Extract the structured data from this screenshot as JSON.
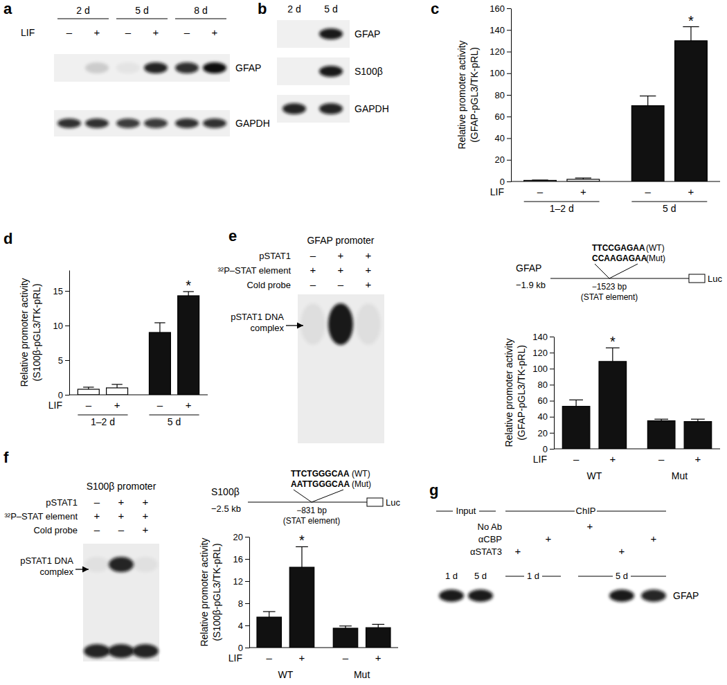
{
  "chart_data": [
    {
      "type": "bar",
      "panel": "c",
      "ylabel": [
        "Relative promoter activity",
        "(GFAP-pGL3/TK-pRL)"
      ],
      "x_label": "LIF",
      "categories": [
        "–",
        "+",
        "–",
        "+"
      ],
      "groups": [
        "1–2 d",
        "5 d"
      ],
      "values": [
        1.0,
        2.0,
        70,
        130
      ],
      "errors": [
        0.3,
        1.2,
        9,
        13
      ],
      "colors": [
        "#ffffff",
        "#ffffff",
        "#111111",
        "#111111"
      ],
      "significance": [
        null,
        null,
        null,
        "*"
      ],
      "ylim": [
        0,
        160
      ],
      "yticks": [
        0,
        20,
        40,
        60,
        80,
        100,
        120,
        140,
        160
      ]
    },
    {
      "type": "bar",
      "panel": "d",
      "ylabel": [
        "Relative promoter activity",
        "(S100β-pGL3/TK-pRL)"
      ],
      "x_label": "LIF",
      "categories": [
        "–",
        "+",
        "–",
        "+"
      ],
      "groups": [
        "1–2 d",
        "5 d"
      ],
      "values": [
        0.8,
        1.0,
        9.0,
        14.3
      ],
      "errors": [
        0.3,
        0.5,
        1.4,
        0.6
      ],
      "colors": [
        "#ffffff",
        "#ffffff",
        "#111111",
        "#111111"
      ],
      "significance": [
        null,
        null,
        null,
        "*"
      ],
      "ylim": [
        0,
        18
      ],
      "yticks": [
        0,
        5,
        10,
        15
      ]
    },
    {
      "type": "bar",
      "ylabel": [
        "Relative promoter activity",
        "(GFAP-pGL3/TK-pRL)"
      ],
      "x_label": "LIF",
      "categories": [
        "–",
        "+",
        "–",
        "+"
      ],
      "groups": [
        "WT",
        "Mut"
      ],
      "values": [
        53,
        109,
        35,
        34
      ],
      "errors": [
        8,
        17,
        2,
        3
      ],
      "colors": [
        "#111111",
        "#111111",
        "#111111",
        "#111111"
      ],
      "significance": [
        null,
        "*",
        null,
        null
      ],
      "ylim": [
        0,
        140
      ],
      "yticks": [
        0,
        20,
        40,
        60,
        80,
        100,
        120,
        140
      ]
    },
    {
      "type": "bar",
      "ylabel": [
        "Relative promoter activity",
        "(S100β-pGL3/TK-pRL)"
      ],
      "x_label": "LIF",
      "categories": [
        "–",
        "+",
        "–",
        "+"
      ],
      "groups": [
        "WT",
        "Mut"
      ],
      "values": [
        5.5,
        14.5,
        3.5,
        3.6
      ],
      "errors": [
        1.0,
        3.7,
        0.4,
        0.6
      ],
      "colors": [
        "#111111",
        "#111111",
        "#111111",
        "#111111"
      ],
      "significance": [
        null,
        "*",
        null,
        null
      ],
      "ylim": [
        0,
        20
      ],
      "yticks": [
        0,
        4,
        8,
        12,
        16,
        20
      ]
    }
  ],
  "blot_panels": [
    {
      "panel": "a",
      "headers": [
        "2 d",
        "5 d",
        "8 d"
      ],
      "row_label": "LIF",
      "row": [
        "–",
        "+",
        "–",
        "+",
        "–",
        "+"
      ],
      "blots": [
        {
          "label": "GFAP",
          "bands": [
            0,
            0.15,
            0.05,
            0.9,
            0.85,
            1.0
          ]
        },
        {
          "label": "GAPDH",
          "bands": [
            0.85,
            0.85,
            0.8,
            0.8,
            0.85,
            0.85
          ]
        }
      ]
    },
    {
      "panel": "b",
      "headers": [
        "2 d",
        "5 d"
      ],
      "blots": [
        {
          "label": "GFAP",
          "bands": [
            0,
            0.95
          ]
        },
        {
          "label": "S100β",
          "bands": [
            0,
            0.95
          ]
        },
        {
          "label": "GAPDH",
          "bands": [
            0.9,
            0.9
          ]
        }
      ]
    },
    {
      "panel": "g",
      "headers": [
        "Input",
        "ChIP"
      ],
      "rows": [
        {
          "label": "No Ab",
          "marks": [
            null,
            null,
            null,
            null,
            "+",
            null,
            null
          ]
        },
        {
          "label": "αCBP",
          "marks": [
            null,
            null,
            null,
            "+",
            null,
            null,
            "+"
          ]
        },
        {
          "label": "αSTAT3",
          "marks": [
            null,
            null,
            "+",
            null,
            null,
            "+",
            null
          ]
        }
      ],
      "lane_labels": [
        "1 d",
        "5 d",
        "1 d",
        "5 d"
      ],
      "blots": [
        {
          "label": "GFAP",
          "bands": [
            0.95,
            0.95,
            0,
            0,
            0,
            0.95,
            0.9
          ]
        }
      ]
    }
  ],
  "emsa": [
    {
      "panel": "e",
      "title": "GFAP promoter",
      "rows": [
        {
          "label": "pSTAT1",
          "marks": [
            "–",
            "+",
            "+"
          ]
        },
        {
          "label": "³²P–STAT element",
          "marks": [
            "+",
            "+",
            "+"
          ]
        },
        {
          "label": "Cold probe",
          "marks": [
            "–",
            "–",
            "+"
          ]
        }
      ],
      "complex_label": [
        "pSTAT1 DNA",
        "complex"
      ],
      "complex": [
        0.06,
        0.95,
        0.06
      ]
    },
    {
      "panel": "f",
      "title": "S100β promoter",
      "rows": [
        {
          "label": "pSTAT1",
          "marks": [
            "–",
            "+",
            "+"
          ]
        },
        {
          "label": "³²P–STAT element",
          "marks": [
            "+",
            "+",
            "+"
          ]
        },
        {
          "label": "Cold probe",
          "marks": [
            "–",
            "–",
            "+"
          ]
        }
      ],
      "complex_label": [
        "pSTAT1 DNA",
        "complex"
      ],
      "complex": [
        0.05,
        0.9,
        0.05
      ],
      "free_probe": [
        0.9,
        0.9,
        0.9
      ]
    }
  ],
  "constructs": [
    {
      "gene": "GFAP",
      "length": "−1.9 kb",
      "wt": "TTCCGAGAA",
      "wt_tag": "(WT)",
      "mut": "CCAAGAGAA",
      "mut_tag": "(Mut)",
      "site": "−1523 bp",
      "element": "(STAT element)",
      "reporter": "Luc"
    },
    {
      "gene": "S100β",
      "length": "−2.5 kb",
      "wt": "TTCTGGGCAA",
      "wt_tag": "(WT)",
      "mut": "AATTGGGCAA",
      "mut_tag": "(Mut)",
      "site": "−831 bp",
      "element": "(STAT element)",
      "reporter": "Luc"
    }
  ]
}
